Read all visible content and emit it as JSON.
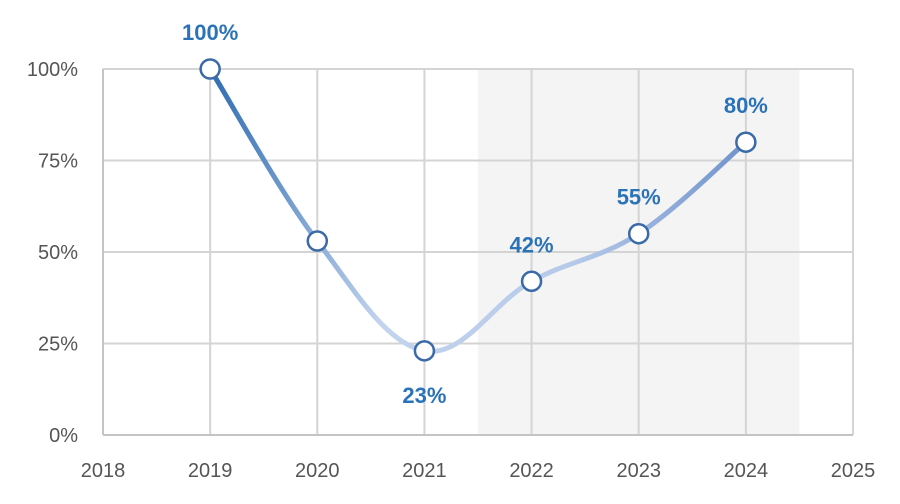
{
  "chart_data": {
    "type": "line",
    "x": [
      2019,
      2020,
      2021,
      2022,
      2023,
      2024
    ],
    "values": [
      100,
      53,
      23,
      42,
      55,
      80
    ],
    "data_labels": [
      "100%",
      "",
      "23%",
      "42%",
      "55%",
      "80%"
    ],
    "x_ticks": [
      "2018",
      "2019",
      "2020",
      "2021",
      "2022",
      "2023",
      "2024",
      "2025"
    ],
    "y_ticks": [
      "0%",
      "25%",
      "50%",
      "75%",
      "100%"
    ],
    "xlim": [
      2018,
      2025
    ],
    "ylim": [
      0,
      100
    ],
    "highlight_range": [
      2021.5,
      2024.5
    ],
    "grid": true,
    "colors": {
      "line_start": "#2f6db2",
      "line_mid": "#c3d4ee",
      "line_end": "#6f93cc",
      "label": "#2b73b8",
      "highlight": "#f4f4f4"
    }
  }
}
